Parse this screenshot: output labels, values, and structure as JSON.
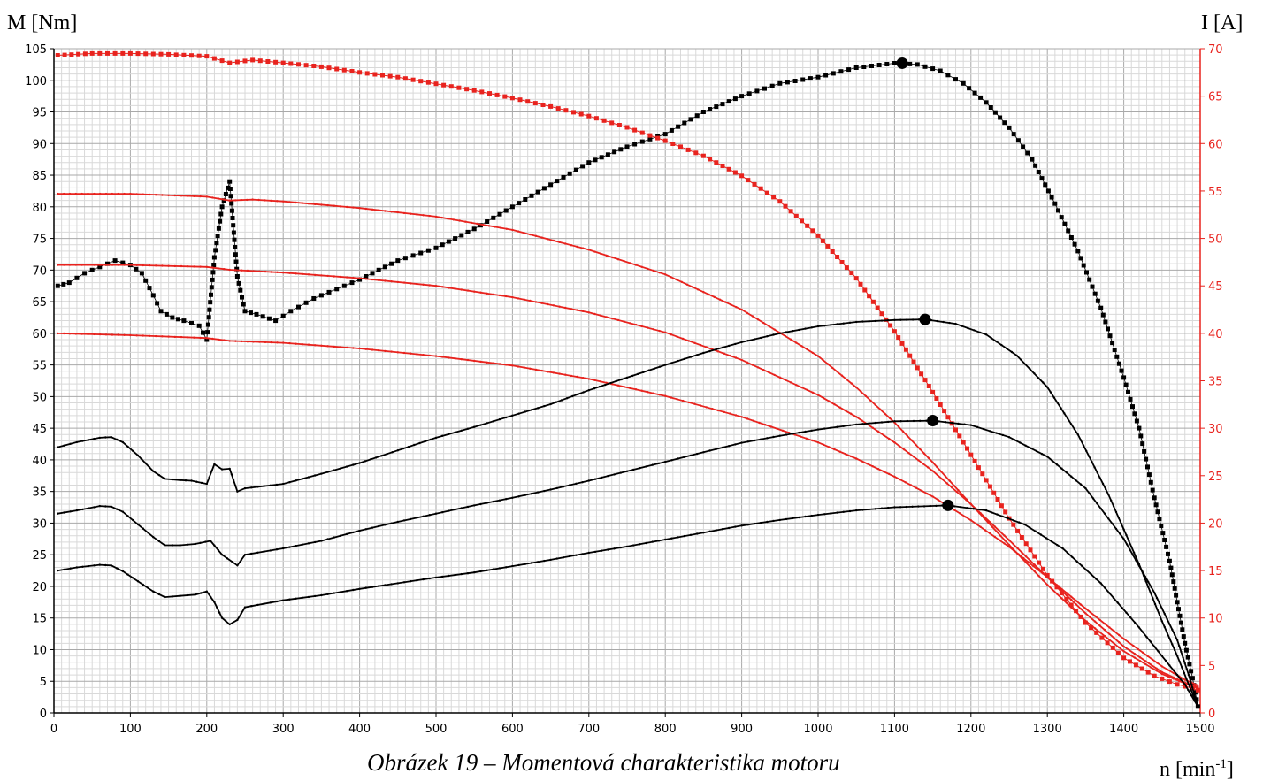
{
  "caption": "Obrázek 19 – Momentová charakteristika motoru",
  "chart_data": {
    "type": "line",
    "title": "",
    "xlabel_base": "n [min",
    "xlabel_sup": "-1",
    "xlabel_end": "]",
    "ylabel_left": "M [Nm]",
    "ylabel_right": "I [A]",
    "xlim": [
      0,
      1500
    ],
    "ylim_left": [
      0,
      105
    ],
    "ylim_right": [
      0,
      70
    ],
    "x_ticks": [
      0,
      100,
      200,
      300,
      400,
      500,
      600,
      700,
      800,
      900,
      1000,
      1100,
      1200,
      1300,
      1400,
      1500
    ],
    "y_left_ticks": [
      0,
      5,
      10,
      15,
      20,
      25,
      30,
      35,
      40,
      45,
      50,
      55,
      60,
      65,
      70,
      75,
      80,
      85,
      90,
      95,
      100,
      105
    ],
    "y_right_ticks": [
      0,
      5,
      10,
      15,
      20,
      25,
      30,
      35,
      40,
      45,
      50,
      55,
      60,
      65,
      70
    ],
    "grid": true,
    "colors": {
      "torque": "#000000",
      "current": "#e8231e"
    },
    "series": [
      {
        "axis": "left",
        "color": "#000000",
        "marker": "square",
        "max_point": [
          1110,
          102.7
        ],
        "points": [
          [
            5,
            67.5
          ],
          [
            20,
            68
          ],
          [
            40,
            69.5
          ],
          [
            60,
            70.5
          ],
          [
            80,
            71.5
          ],
          [
            100,
            70.8
          ],
          [
            115,
            69.5
          ],
          [
            130,
            66
          ],
          [
            140,
            63.5
          ],
          [
            155,
            62.5
          ],
          [
            170,
            62
          ],
          [
            190,
            61.2
          ],
          [
            200,
            59
          ],
          [
            210,
            72
          ],
          [
            220,
            80
          ],
          [
            230,
            84
          ],
          [
            240,
            69
          ],
          [
            250,
            63.5
          ],
          [
            265,
            63
          ],
          [
            290,
            62
          ],
          [
            310,
            63.5
          ],
          [
            340,
            65.5
          ],
          [
            380,
            67.5
          ],
          [
            400,
            68.5
          ],
          [
            450,
            71.5
          ],
          [
            500,
            73.5
          ],
          [
            550,
            76.5
          ],
          [
            600,
            80
          ],
          [
            650,
            83.5
          ],
          [
            700,
            87
          ],
          [
            750,
            89.5
          ],
          [
            800,
            91.5
          ],
          [
            850,
            95
          ],
          [
            900,
            97.5
          ],
          [
            950,
            99.5
          ],
          [
            1000,
            100.5
          ],
          [
            1050,
            102
          ],
          [
            1100,
            102.7
          ],
          [
            1130,
            102.5
          ],
          [
            1160,
            101.5
          ],
          [
            1190,
            99.5
          ],
          [
            1220,
            96.5
          ],
          [
            1250,
            92.5
          ],
          [
            1280,
            87.5
          ],
          [
            1310,
            80.5
          ],
          [
            1340,
            73
          ],
          [
            1370,
            64
          ],
          [
            1400,
            53
          ],
          [
            1420,
            45
          ],
          [
            1440,
            34
          ],
          [
            1460,
            24
          ],
          [
            1470,
            17.5
          ],
          [
            1480,
            11
          ],
          [
            1490,
            5.5
          ],
          [
            1497,
            1
          ]
        ]
      },
      {
        "axis": "right",
        "color": "#e8231e",
        "marker": "square",
        "points": [
          [
            5,
            69.3
          ],
          [
            50,
            69.5
          ],
          [
            100,
            69.5
          ],
          [
            150,
            69.4
          ],
          [
            200,
            69.2
          ],
          [
            230,
            68.5
          ],
          [
            260,
            68.8
          ],
          [
            300,
            68.5
          ],
          [
            350,
            68.1
          ],
          [
            400,
            67.5
          ],
          [
            450,
            67
          ],
          [
            500,
            66.3
          ],
          [
            550,
            65.6
          ],
          [
            600,
            64.8
          ],
          [
            650,
            63.9
          ],
          [
            700,
            62.9
          ],
          [
            750,
            61.7
          ],
          [
            800,
            60.3
          ],
          [
            850,
            58.7
          ],
          [
            900,
            56.6
          ],
          [
            950,
            53.9
          ],
          [
            1000,
            50.3
          ],
          [
            1050,
            45.8
          ],
          [
            1100,
            40.2
          ],
          [
            1150,
            33.8
          ],
          [
            1200,
            27.2
          ],
          [
            1250,
            20.5
          ],
          [
            1300,
            14.5
          ],
          [
            1350,
            9.5
          ],
          [
            1400,
            5.8
          ],
          [
            1440,
            3.9
          ],
          [
            1470,
            3
          ],
          [
            1490,
            2.6
          ],
          [
            1497,
            2.4
          ]
        ]
      },
      {
        "axis": "right",
        "color": "#e8231e",
        "marker": "dot",
        "points": [
          [
            5,
            54.7
          ],
          [
            100,
            54.7
          ],
          [
            200,
            54.4
          ],
          [
            230,
            54
          ],
          [
            260,
            54.1
          ],
          [
            300,
            53.9
          ],
          [
            400,
            53.2
          ],
          [
            500,
            52.3
          ],
          [
            600,
            50.9
          ],
          [
            700,
            48.8
          ],
          [
            800,
            46.2
          ],
          [
            900,
            42.5
          ],
          [
            1000,
            37.6
          ],
          [
            1050,
            34.3
          ],
          [
            1100,
            30.6
          ],
          [
            1150,
            26.4
          ],
          [
            1200,
            22
          ],
          [
            1250,
            17.7
          ],
          [
            1300,
            13.5
          ],
          [
            1350,
            9.7
          ],
          [
            1400,
            6.5
          ],
          [
            1450,
            4.1
          ],
          [
            1480,
            3.1
          ],
          [
            1497,
            2.6
          ]
        ]
      },
      {
        "axis": "right",
        "color": "#e8231e",
        "marker": "dot",
        "points": [
          [
            5,
            47.2
          ],
          [
            100,
            47.2
          ],
          [
            200,
            47
          ],
          [
            230,
            46.7
          ],
          [
            300,
            46.4
          ],
          [
            400,
            45.8
          ],
          [
            500,
            45
          ],
          [
            600,
            43.8
          ],
          [
            700,
            42.2
          ],
          [
            800,
            40.1
          ],
          [
            900,
            37.2
          ],
          [
            1000,
            33.5
          ],
          [
            1050,
            31.2
          ],
          [
            1100,
            28.5
          ],
          [
            1150,
            25.5
          ],
          [
            1200,
            22
          ],
          [
            1250,
            18.2
          ],
          [
            1300,
            14.3
          ],
          [
            1350,
            10.5
          ],
          [
            1400,
            7
          ],
          [
            1450,
            4.3
          ],
          [
            1480,
            3.2
          ],
          [
            1497,
            2.7
          ]
        ]
      },
      {
        "axis": "right",
        "color": "#e8231e",
        "marker": "dot",
        "points": [
          [
            5,
            40
          ],
          [
            100,
            39.8
          ],
          [
            200,
            39.5
          ],
          [
            230,
            39.2
          ],
          [
            300,
            39
          ],
          [
            400,
            38.4
          ],
          [
            500,
            37.6
          ],
          [
            600,
            36.6
          ],
          [
            700,
            35.2
          ],
          [
            800,
            33.4
          ],
          [
            900,
            31.2
          ],
          [
            1000,
            28.5
          ],
          [
            1050,
            26.8
          ],
          [
            1100,
            24.9
          ],
          [
            1150,
            22.8
          ],
          [
            1200,
            20.3
          ],
          [
            1250,
            17.5
          ],
          [
            1300,
            14.3
          ],
          [
            1350,
            11
          ],
          [
            1400,
            7.8
          ],
          [
            1450,
            4.9
          ],
          [
            1480,
            3.5
          ],
          [
            1497,
            2.9
          ]
        ]
      },
      {
        "axis": "left",
        "color": "#000000",
        "marker": "dot",
        "max_point": [
          1140,
          62.2
        ],
        "points": [
          [
            5,
            42
          ],
          [
            30,
            42.8
          ],
          [
            60,
            43.5
          ],
          [
            75,
            43.6
          ],
          [
            90,
            42.8
          ],
          [
            110,
            40.7
          ],
          [
            130,
            38.2
          ],
          [
            145,
            37
          ],
          [
            165,
            36.8
          ],
          [
            180,
            36.7
          ],
          [
            200,
            36.2
          ],
          [
            210,
            39.3
          ],
          [
            220,
            38.5
          ],
          [
            230,
            38.6
          ],
          [
            240,
            35
          ],
          [
            250,
            35.5
          ],
          [
            300,
            36.2
          ],
          [
            350,
            37.8
          ],
          [
            400,
            39.5
          ],
          [
            450,
            41.5
          ],
          [
            500,
            43.5
          ],
          [
            550,
            45.2
          ],
          [
            600,
            47
          ],
          [
            650,
            48.8
          ],
          [
            700,
            51
          ],
          [
            750,
            53
          ],
          [
            800,
            55
          ],
          [
            850,
            56.9
          ],
          [
            900,
            58.6
          ],
          [
            950,
            60
          ],
          [
            1000,
            61.1
          ],
          [
            1050,
            61.8
          ],
          [
            1100,
            62.1
          ],
          [
            1140,
            62.2
          ],
          [
            1180,
            61.5
          ],
          [
            1220,
            59.8
          ],
          [
            1260,
            56.5
          ],
          [
            1300,
            51.5
          ],
          [
            1340,
            44
          ],
          [
            1380,
            34.5
          ],
          [
            1420,
            23.5
          ],
          [
            1450,
            14.5
          ],
          [
            1470,
            9
          ],
          [
            1485,
            4.5
          ],
          [
            1497,
            1
          ]
        ]
      },
      {
        "axis": "left",
        "color": "#000000",
        "marker": "dot",
        "max_point": [
          1150,
          46.2
        ],
        "points": [
          [
            5,
            31.5
          ],
          [
            30,
            32
          ],
          [
            60,
            32.7
          ],
          [
            75,
            32.6
          ],
          [
            90,
            31.8
          ],
          [
            110,
            29.8
          ],
          [
            130,
            27.8
          ],
          [
            145,
            26.5
          ],
          [
            165,
            26.5
          ],
          [
            185,
            26.7
          ],
          [
            205,
            27.2
          ],
          [
            220,
            25
          ],
          [
            240,
            23.3
          ],
          [
            250,
            25
          ],
          [
            300,
            26
          ],
          [
            350,
            27.2
          ],
          [
            400,
            28.8
          ],
          [
            450,
            30.2
          ],
          [
            500,
            31.5
          ],
          [
            550,
            32.8
          ],
          [
            600,
            34
          ],
          [
            650,
            35.3
          ],
          [
            700,
            36.7
          ],
          [
            750,
            38.2
          ],
          [
            800,
            39.7
          ],
          [
            850,
            41.2
          ],
          [
            900,
            42.7
          ],
          [
            950,
            43.8
          ],
          [
            1000,
            44.8
          ],
          [
            1050,
            45.6
          ],
          [
            1100,
            46.1
          ],
          [
            1150,
            46.2
          ],
          [
            1200,
            45.5
          ],
          [
            1250,
            43.6
          ],
          [
            1300,
            40.5
          ],
          [
            1350,
            35.5
          ],
          [
            1400,
            27.5
          ],
          [
            1440,
            19
          ],
          [
            1470,
            11.5
          ],
          [
            1485,
            6
          ],
          [
            1497,
            1
          ]
        ]
      },
      {
        "axis": "left",
        "color": "#000000",
        "marker": "dot",
        "max_point": [
          1170,
          32.8
        ],
        "points": [
          [
            5,
            22.5
          ],
          [
            30,
            23
          ],
          [
            60,
            23.4
          ],
          [
            75,
            23.3
          ],
          [
            90,
            22.4
          ],
          [
            110,
            20.8
          ],
          [
            130,
            19.2
          ],
          [
            145,
            18.3
          ],
          [
            165,
            18.5
          ],
          [
            185,
            18.7
          ],
          [
            200,
            19.2
          ],
          [
            210,
            17.5
          ],
          [
            220,
            15
          ],
          [
            230,
            14
          ],
          [
            240,
            14.7
          ],
          [
            250,
            16.7
          ],
          [
            300,
            17.8
          ],
          [
            350,
            18.6
          ],
          [
            400,
            19.6
          ],
          [
            450,
            20.5
          ],
          [
            500,
            21.4
          ],
          [
            550,
            22.2
          ],
          [
            600,
            23.2
          ],
          [
            650,
            24.2
          ],
          [
            700,
            25.3
          ],
          [
            750,
            26.3
          ],
          [
            800,
            27.4
          ],
          [
            850,
            28.5
          ],
          [
            900,
            29.6
          ],
          [
            950,
            30.5
          ],
          [
            1000,
            31.3
          ],
          [
            1050,
            32
          ],
          [
            1100,
            32.5
          ],
          [
            1170,
            32.8
          ],
          [
            1220,
            32
          ],
          [
            1270,
            29.8
          ],
          [
            1320,
            26
          ],
          [
            1370,
            20.5
          ],
          [
            1420,
            13.5
          ],
          [
            1460,
            7.5
          ],
          [
            1480,
            4.5
          ],
          [
            1497,
            1
          ]
        ]
      }
    ]
  }
}
